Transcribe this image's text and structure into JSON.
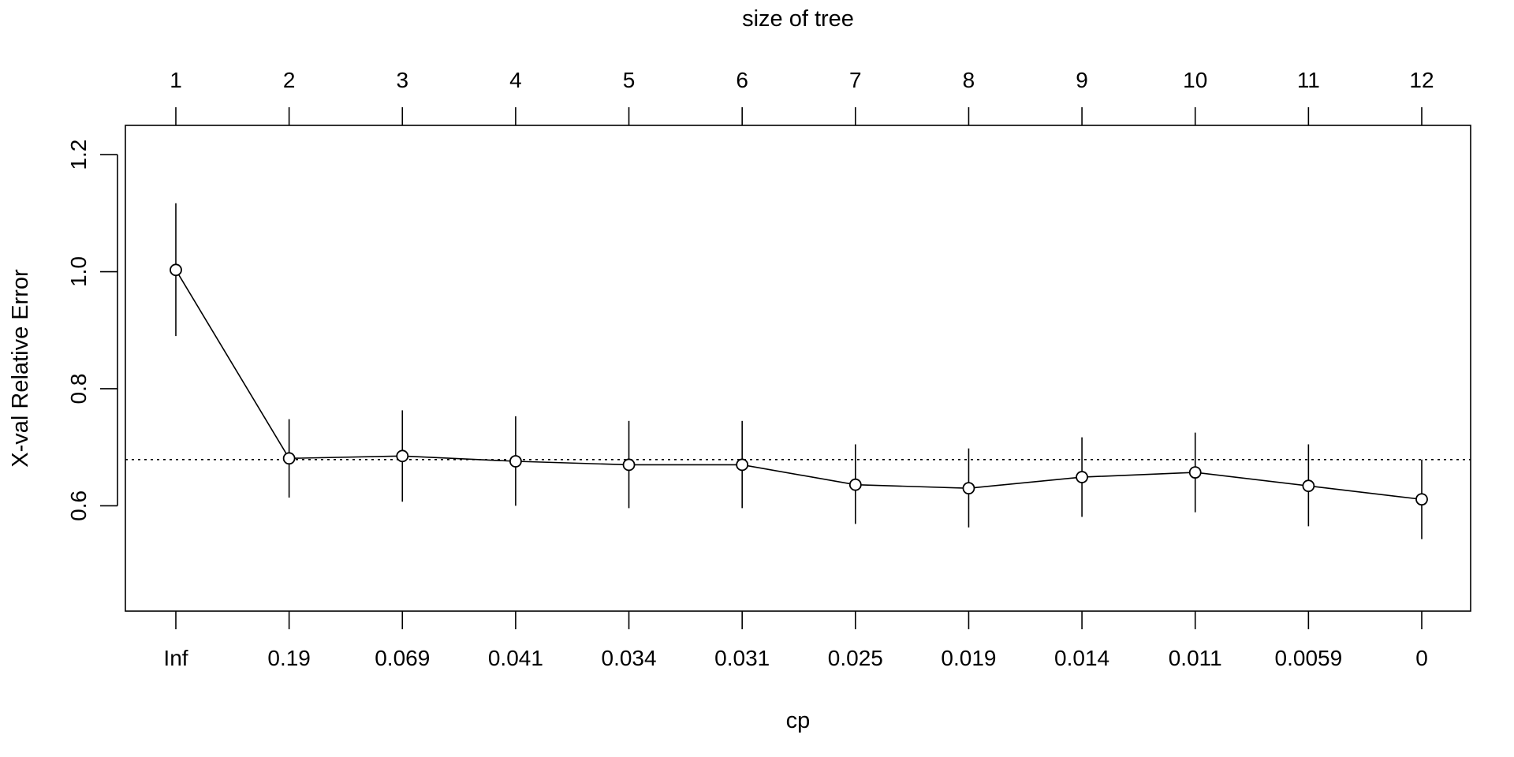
{
  "chart_data": {
    "type": "line",
    "title": "",
    "xlabel_bottom": "cp",
    "xlabel_top": "size of tree",
    "ylabel": "X-val Relative Error",
    "ylim": [
      0.42,
      1.25
    ],
    "y_ticks": [
      "0.6",
      "0.8",
      "1.0",
      "1.2"
    ],
    "cp_labels": [
      "Inf",
      "0.19",
      "0.069",
      "0.041",
      "0.034",
      "0.031",
      "0.025",
      "0.019",
      "0.014",
      "0.011",
      "0.0059",
      "0"
    ],
    "size_labels": [
      "1",
      "2",
      "3",
      "4",
      "5",
      "6",
      "7",
      "8",
      "9",
      "10",
      "11",
      "12"
    ],
    "reference_line": 0.679,
    "series": [
      {
        "values": [
          1.003,
          0.681,
          0.685,
          0.676,
          0.67,
          0.67,
          0.636,
          0.63,
          0.649,
          0.657,
          0.634,
          0.611
        ],
        "upper": [
          1.117,
          0.748,
          0.763,
          0.753,
          0.745,
          0.745,
          0.705,
          0.698,
          0.717,
          0.725,
          0.705,
          0.679
        ],
        "lower": [
          0.89,
          0.614,
          0.607,
          0.6,
          0.596,
          0.596,
          0.569,
          0.563,
          0.581,
          0.589,
          0.565,
          0.543
        ]
      }
    ],
    "grid": false,
    "legend": "none"
  }
}
